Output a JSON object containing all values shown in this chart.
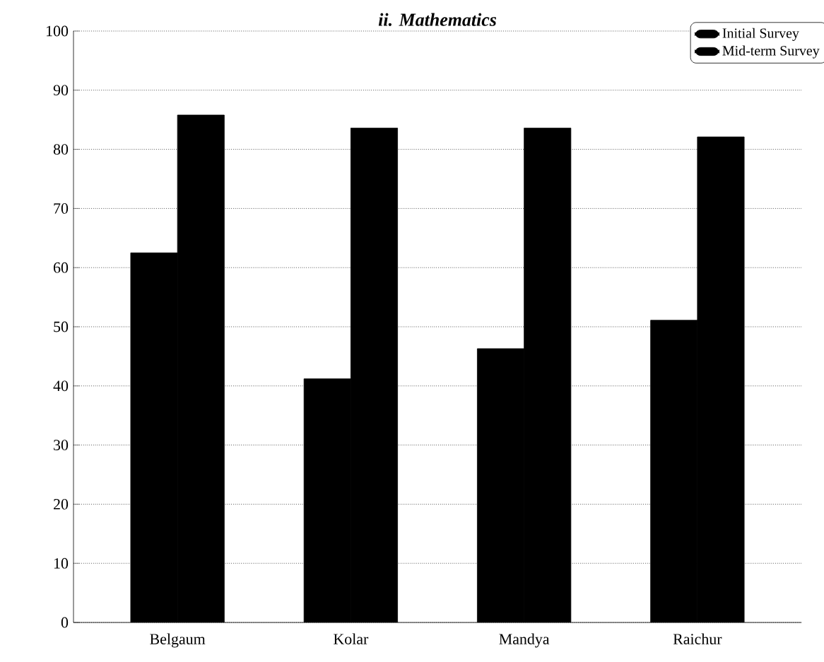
{
  "chart_data": {
    "type": "bar",
    "title": "ii. Mathematics",
    "categories": [
      "Belgaum",
      "Kolar",
      "Mandya",
      "Raichur"
    ],
    "series": [
      {
        "name": "Initial Survey",
        "color": "#000000",
        "values": [
          62.5,
          41.2,
          46.3,
          51.1
        ]
      },
      {
        "name": "Mid-term Survey",
        "color": "#000000",
        "values": [
          85.8,
          83.6,
          83.6,
          82.1
        ]
      }
    ],
    "ylim": [
      0,
      100
    ],
    "yticks": [
      0,
      10,
      20,
      30,
      40,
      50,
      60,
      70,
      80,
      90,
      100
    ],
    "grid": "y",
    "legend": "top right"
  }
}
